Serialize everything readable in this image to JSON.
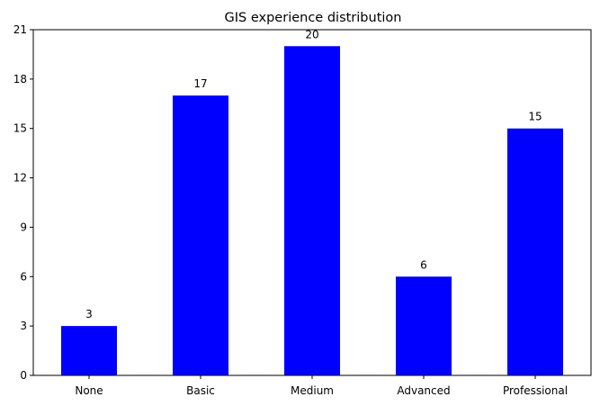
{
  "chart_data": {
    "type": "bar",
    "title": "GIS experience distribution",
    "xlabel": "",
    "ylabel": "",
    "categories": [
      "None",
      "Basic",
      "Medium",
      "Advanced",
      "Professional"
    ],
    "values": [
      3,
      17,
      20,
      6,
      15
    ],
    "ylim": [
      0,
      21
    ],
    "yticks": [
      0,
      3,
      6,
      9,
      12,
      15,
      18,
      21
    ],
    "grid": false,
    "legend": "none",
    "bar_color": "#0000ff",
    "data_labels": true
  }
}
